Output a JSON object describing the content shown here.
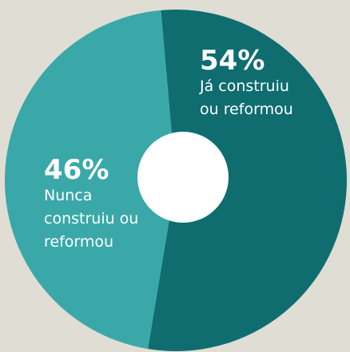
{
  "chart_data": {
    "type": "pie",
    "categories": [
      "Já construiu ou reformou",
      "Nunca construiu ou reformou"
    ],
    "values": [
      54,
      46
    ],
    "value_labels": [
      "54%",
      "46%"
    ],
    "colors": [
      "#0f6d70",
      "#3aa8a8"
    ]
  }
}
